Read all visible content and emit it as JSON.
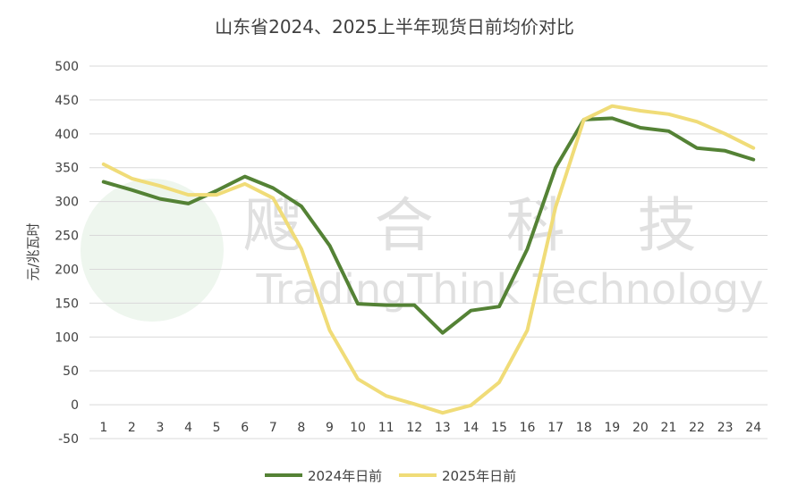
{
  "chart_data": {
    "type": "line",
    "title": "山东省2024、2025上半年现货日前均价对比",
    "ylabel": "元/兆瓦时",
    "xlabel": "",
    "ylim": [
      -50,
      500
    ],
    "yticks": [
      -50,
      0,
      50,
      100,
      150,
      200,
      250,
      300,
      350,
      400,
      450,
      500
    ],
    "categories": [
      "1",
      "2",
      "3",
      "4",
      "5",
      "6",
      "7",
      "8",
      "9",
      "10",
      "11",
      "12",
      "13",
      "14",
      "15",
      "16",
      "17",
      "18",
      "19",
      "20",
      "21",
      "22",
      "23",
      "24"
    ],
    "grid": true,
    "legend_position": "bottom",
    "series": [
      {
        "name": "2024年日前",
        "color": "#548235",
        "values": [
          329,
          317,
          304,
          297,
          316,
          337,
          320,
          293,
          235,
          149,
          147,
          147,
          106,
          139,
          145,
          230,
          350,
          421,
          423,
          409,
          404,
          379,
          375,
          362
        ]
      },
      {
        "name": "2025年日前",
        "color": "#F0DC78",
        "values": [
          355,
          334,
          323,
          310,
          310,
          326,
          305,
          230,
          110,
          38,
          13,
          1,
          -12,
          -1,
          33,
          110,
          292,
          421,
          441,
          434,
          429,
          418,
          400,
          379
        ]
      }
    ]
  },
  "watermark": {
    "cn": "飕 合 科 技",
    "en": "TradingThink Technology"
  }
}
